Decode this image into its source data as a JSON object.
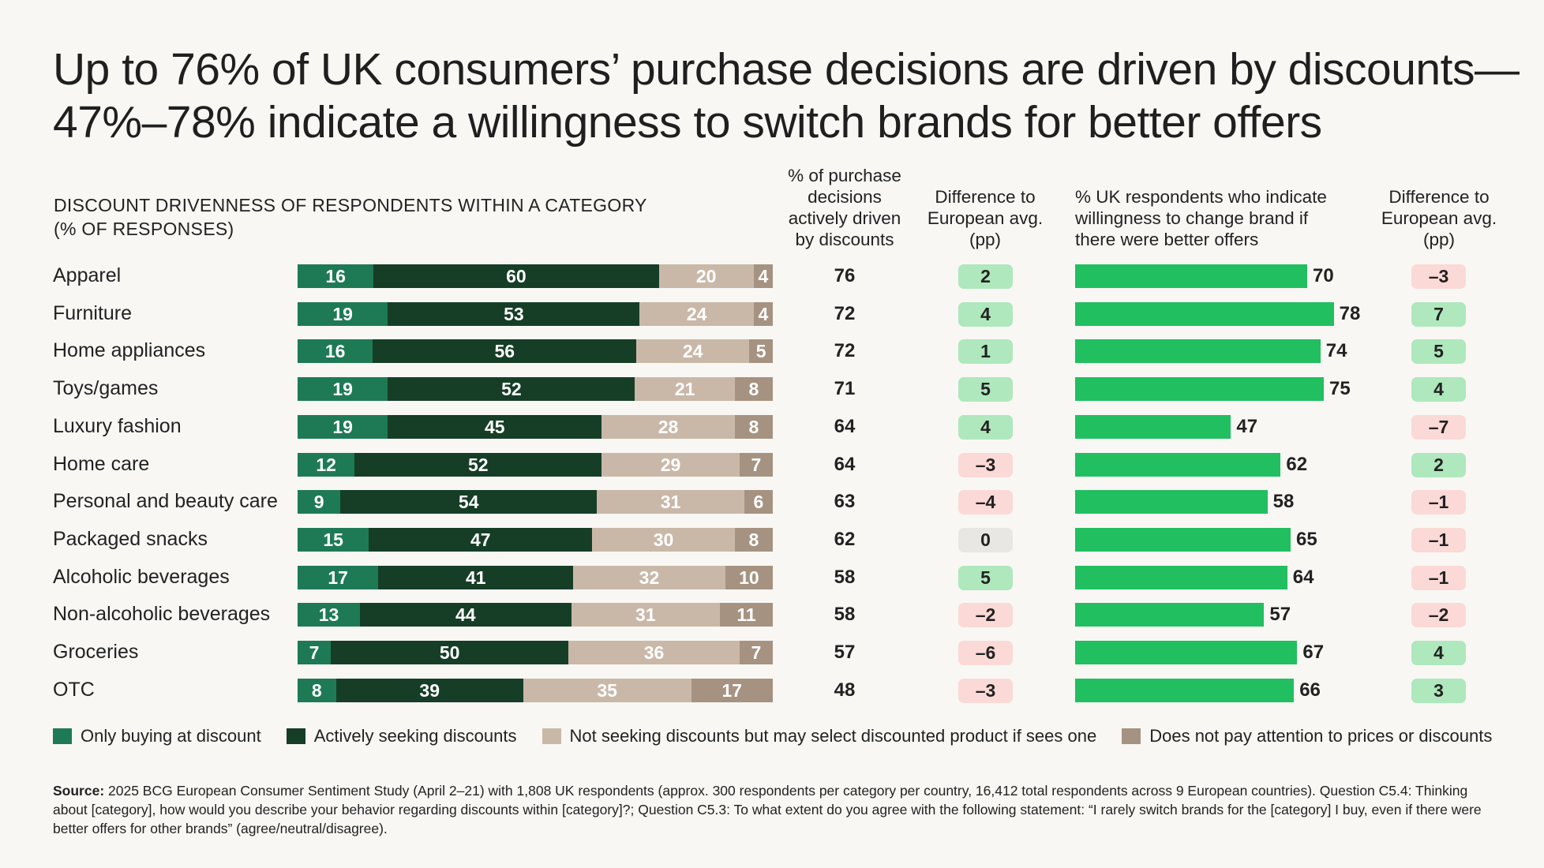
{
  "title": {
    "line1": "Up to 76% of UK consumers’ purchase decisions are driven by discounts—",
    "line2": "47%–78% indicate a willingness to switch brands for better offers"
  },
  "subtitle": {
    "line1": "DISCOUNT DRIVENNESS OF RESPONDENTS WITHIN A CATEGORY",
    "line2": "(% OF RESPONSES)"
  },
  "headers": {
    "pct_driven": [
      "% of purchase",
      "decisions",
      "actively driven",
      "by discounts"
    ],
    "diff1": [
      "Difference to",
      "European avg.",
      "(pp)"
    ],
    "willingness": [
      "% UK respondents who indicate",
      "willingness to change brand if",
      "there were better offers"
    ],
    "diff2": [
      "Difference to",
      "European avg.",
      "(pp)"
    ]
  },
  "colors": {
    "only_buying": "#1e7a55",
    "actively_seeking": "#163e27",
    "not_seeking": "#c9b8a8",
    "no_attention": "#a69281",
    "willingness_bar": "#21bf60",
    "pill_positive": "#aee8bc",
    "pill_negative": "#fbd9d6",
    "pill_zero": "#e9e7e3"
  },
  "chart_data": {
    "type": "bar",
    "orientation": "horizontal",
    "stacked": true,
    "categories": [
      "Apparel",
      "Furniture",
      "Home appliances",
      "Toys/games",
      "Luxury fashion",
      "Home care",
      "Personal and beauty care",
      "Packaged snacks",
      "Alcoholic beverages",
      "Non-alcoholic beverages",
      "Groceries",
      "OTC"
    ],
    "series": [
      {
        "name": "Only buying at discount",
        "values": [
          16,
          19,
          16,
          19,
          19,
          12,
          9,
          15,
          17,
          13,
          7,
          8
        ]
      },
      {
        "name": "Actively seeking discounts",
        "values": [
          60,
          53,
          56,
          52,
          45,
          52,
          54,
          47,
          41,
          44,
          50,
          39
        ]
      },
      {
        "name": "Not seeking discounts but may select discounted product if sees one",
        "values": [
          20,
          24,
          24,
          21,
          28,
          29,
          31,
          30,
          32,
          31,
          36,
          35
        ]
      },
      {
        "name": "Does not pay attention to prices or discounts",
        "values": [
          4,
          4,
          5,
          8,
          8,
          7,
          6,
          8,
          10,
          11,
          7,
          17
        ]
      }
    ],
    "pct_actively_driven": [
      76,
      72,
      72,
      71,
      64,
      64,
      63,
      62,
      58,
      58,
      57,
      48
    ],
    "diff_driven_pp": [
      "2",
      "4",
      "1",
      "5",
      "4",
      "–3",
      "–4",
      "0",
      "5",
      "–2",
      "–6",
      "–3"
    ],
    "willingness_to_switch": [
      70,
      78,
      74,
      75,
      47,
      62,
      58,
      65,
      64,
      57,
      67,
      66
    ],
    "diff_willingness_pp": [
      "–3",
      "7",
      "5",
      "4",
      "–7",
      "2",
      "–1",
      "–1",
      "–1",
      "–2",
      "4",
      "3"
    ],
    "xlim": [
      0,
      100
    ],
    "legend": "bottom"
  },
  "source": {
    "label": "Source:",
    "text": " 2025 BCG European Consumer Sentiment Study (April 2–21) with 1,808 UK respondents (approx. 300 respondents per category per country, 16,412 total respondents across 9 European countries). Question C5.4: Thinking about [category], how would you describe your behavior regarding discounts within [category]?; Question C5.3: To what extent do you agree with the following statement: “I rarely switch brands for the [category] I buy, even if there were better offers for other brands” (agree/neutral/disagree)."
  }
}
